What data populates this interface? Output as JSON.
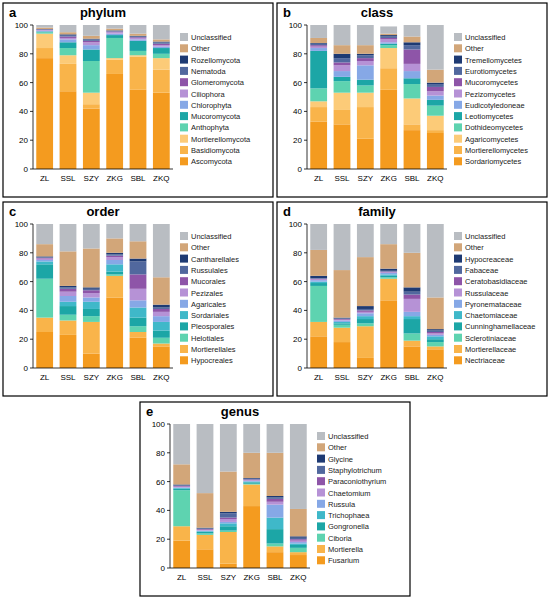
{
  "chart_data": [
    {
      "type": "bar",
      "title": "phylum",
      "annotations": [
        "a"
      ],
      "stacked": true,
      "legend": "right",
      "categories": [
        "ZL",
        "SSL",
        "SZY",
        "ZKG",
        "SBL",
        "ZKQ"
      ],
      "ylim": [
        0,
        100
      ],
      "yticks": [
        0,
        20,
        40,
        60,
        80,
        100
      ],
      "series": [
        {
          "name": "Ascomycota",
          "color": "#F49B1F",
          "values": [
            77,
            54,
            42,
            66,
            55,
            53
          ]
        },
        {
          "name": "Basidiomycota",
          "color": "#F9B44A",
          "values": [
            7,
            19,
            3,
            10,
            23,
            16
          ]
        },
        {
          "name": "Mortierellomycota",
          "color": "#FCCB78",
          "values": [
            10,
            6,
            8,
            1,
            1,
            8
          ]
        },
        {
          "name": "Anthophyta",
          "color": "#5ED3B0",
          "values": [
            1,
            5,
            22,
            14,
            3,
            3
          ]
        },
        {
          "name": "Mucoromycota",
          "color": "#1CA6A6",
          "values": [
            0.5,
            4,
            8,
            2,
            7,
            4
          ]
        },
        {
          "name": "Chlorophyta",
          "color": "#86A8E6",
          "values": [
            0.5,
            2,
            3,
            1,
            1,
            1
          ]
        },
        {
          "name": "Ciliophora",
          "color": "#B692D6",
          "values": [
            0.5,
            1,
            2,
            1,
            1,
            1
          ]
        },
        {
          "name": "Glomeromycota",
          "color": "#8E55A8",
          "values": [
            0.3,
            1,
            1,
            0.5,
            0.5,
            1
          ]
        },
        {
          "name": "Nematoda",
          "color": "#51689E",
          "values": [
            0.2,
            1,
            1,
            0.5,
            0.5,
            1
          ]
        },
        {
          "name": "Rozellomycota",
          "color": "#1E3A73",
          "values": [
            0.2,
            0.5,
            0.5,
            0.3,
            0.5,
            0.5
          ]
        },
        {
          "name": "Other",
          "color": "#D2A679",
          "values": [
            1,
            1.5,
            2,
            1.2,
            1.5,
            1.5
          ]
        },
        {
          "name": "Unclassified",
          "color": "#B9BDC2",
          "values": [
            1.8,
            5,
            7.5,
            2.5,
            6,
            10
          ]
        }
      ]
    },
    {
      "type": "bar",
      "title": "class",
      "annotations": [
        "b"
      ],
      "stacked": true,
      "legend": "right",
      "categories": [
        "ZL",
        "SSL",
        "SZY",
        "ZKG",
        "SBL",
        "ZKQ"
      ],
      "ylim": [
        0,
        100
      ],
      "yticks": [
        0,
        20,
        40,
        60,
        80,
        100
      ],
      "series": [
        {
          "name": "Sordariomycetes",
          "color": "#F49B1F",
          "values": [
            33,
            31,
            21,
            55,
            27,
            25
          ]
        },
        {
          "name": "Mortierellomycetes",
          "color": "#F9B44A",
          "values": [
            10,
            10,
            22,
            15,
            4,
            2
          ]
        },
        {
          "name": "Agaricomycetes",
          "color": "#FCCB78",
          "values": [
            4,
            12,
            10,
            14,
            18,
            10
          ]
        },
        {
          "name": "Dothideomycetes",
          "color": "#5ED3B0",
          "values": [
            9,
            8,
            5,
            2,
            10,
            7
          ]
        },
        {
          "name": "Leotiomycetes",
          "color": "#1CA6A6",
          "values": [
            26,
            3,
            4,
            1,
            4,
            4
          ]
        },
        {
          "name": "Eudicotyledoneae",
          "color": "#86A8E6",
          "values": [
            2,
            4,
            10,
            1,
            5,
            3
          ]
        },
        {
          "name": "Pezizomycetes",
          "color": "#B692D6",
          "values": [
            1,
            4,
            3,
            2,
            5,
            3
          ]
        },
        {
          "name": "Mucoromycetes",
          "color": "#8E55A8",
          "values": [
            1,
            2,
            2,
            1,
            10,
            3
          ]
        },
        {
          "name": "Eurotiomycetes",
          "color": "#51689E",
          "values": [
            1,
            3,
            2,
            1,
            3,
            2
          ]
        },
        {
          "name": "Tremellomycetes",
          "color": "#1E3A73",
          "values": [
            0.5,
            3,
            1,
            1,
            2,
            1
          ]
        },
        {
          "name": "Other",
          "color": "#D2A679",
          "values": [
            3.5,
            6,
            6,
            1,
            4,
            9
          ]
        },
        {
          "name": "Unclassified",
          "color": "#B9BDC2",
          "values": [
            9,
            14,
            14,
            5,
            8,
            31
          ]
        }
      ]
    },
    {
      "type": "bar",
      "title": "order",
      "annotations": [
        "c"
      ],
      "stacked": true,
      "legend": "right",
      "categories": [
        "ZL",
        "SSL",
        "SZY",
        "ZKG",
        "SBL",
        "ZKQ"
      ],
      "ylim": [
        0,
        100
      ],
      "yticks": [
        0,
        20,
        40,
        60,
        80,
        100
      ],
      "series": [
        {
          "name": "Hypocreales",
          "color": "#F49B1F",
          "values": [
            25,
            23,
            10,
            49,
            21,
            15
          ]
        },
        {
          "name": "Mortierellales",
          "color": "#F9B44A",
          "values": [
            10,
            10,
            22,
            15,
            4,
            2
          ]
        },
        {
          "name": "Helotiales",
          "color": "#5ED3B0",
          "values": [
            27,
            4,
            4,
            1,
            4,
            4
          ]
        },
        {
          "name": "Pleosporales",
          "color": "#1CA6A6",
          "values": [
            10,
            6,
            5,
            2,
            6,
            5
          ]
        },
        {
          "name": "Sordariales",
          "color": "#3FB8C9",
          "values": [
            2,
            3,
            5,
            5,
            7,
            6
          ]
        },
        {
          "name": "Agaricales",
          "color": "#86A8E6",
          "values": [
            1,
            4,
            3,
            3,
            5,
            4
          ]
        },
        {
          "name": "Pezizales",
          "color": "#B692D6",
          "values": [
            1,
            3,
            3,
            2,
            8,
            3
          ]
        },
        {
          "name": "Mucorales",
          "color": "#8E55A8",
          "values": [
            0.5,
            2,
            2,
            1,
            10,
            2
          ]
        },
        {
          "name": "Russulales",
          "color": "#51689E",
          "values": [
            0.5,
            1,
            1,
            1,
            9,
            1
          ]
        },
        {
          "name": "Cantharellales",
          "color": "#1E3A73",
          "values": [
            0.5,
            1,
            1,
            1,
            2,
            2
          ]
        },
        {
          "name": "Other",
          "color": "#D2A679",
          "values": [
            8.5,
            24,
            27,
            10,
            12,
            19
          ]
        },
        {
          "name": "Unclassified",
          "color": "#B9BDC2",
          "values": [
            14,
            19,
            17,
            10,
            12,
            37
          ]
        }
      ]
    },
    {
      "type": "bar",
      "title": "family",
      "annotations": [
        "d"
      ],
      "stacked": true,
      "legend": "right",
      "categories": [
        "ZL",
        "SSL",
        "SZY",
        "ZKG",
        "SBL",
        "ZKQ"
      ],
      "ylim": [
        0,
        100
      ],
      "yticks": [
        0,
        20,
        40,
        60,
        80,
        100
      ],
      "series": [
        {
          "name": "Nectriaceae",
          "color": "#F49B1F",
          "values": [
            22,
            18,
            7,
            47,
            15,
            13
          ]
        },
        {
          "name": "Mortierellaceae",
          "color": "#F9B44A",
          "values": [
            10,
            10,
            22,
            15,
            4,
            2
          ]
        },
        {
          "name": "Sclerotiniaceae",
          "color": "#5ED3B0",
          "values": [
            25,
            2,
            2,
            1,
            5,
            3
          ]
        },
        {
          "name": "Cunninghamellaceae",
          "color": "#1CA6A6",
          "values": [
            2,
            1,
            3,
            1,
            10,
            2
          ]
        },
        {
          "name": "Chaetomiaceae",
          "color": "#3FB8C9",
          "values": [
            1,
            1,
            2,
            1,
            2,
            2
          ]
        },
        {
          "name": "Pyronemataceae",
          "color": "#86A8E6",
          "values": [
            1,
            1,
            2,
            1,
            3,
            1
          ]
        },
        {
          "name": "Russulaceae",
          "color": "#B692D6",
          "values": [
            0.5,
            0.5,
            1,
            0.5,
            9,
            1
          ]
        },
        {
          "name": "Ceratobasidiaceae",
          "color": "#8E55A8",
          "values": [
            0.5,
            0.5,
            1,
            0.5,
            3,
            1
          ]
        },
        {
          "name": "Fabaceae",
          "color": "#51689E",
          "values": [
            0.5,
            0.5,
            1,
            0.5,
            2,
            1
          ]
        },
        {
          "name": "Hypocreaceae",
          "color": "#1E3A73",
          "values": [
            1.5,
            0.5,
            2,
            1.5,
            3,
            1
          ]
        },
        {
          "name": "Other",
          "color": "#D2A679",
          "values": [
            18,
            33,
            34,
            17,
            24,
            22
          ]
        },
        {
          "name": "Unclassified",
          "color": "#B9BDC2",
          "values": [
            18,
            32,
            23,
            14,
            20,
            51
          ]
        }
      ]
    },
    {
      "type": "bar",
      "title": "genus",
      "annotations": [
        "e"
      ],
      "stacked": true,
      "legend": "right",
      "categories": [
        "ZL",
        "SSL",
        "SZY",
        "ZKG",
        "SBL",
        "ZKQ"
      ],
      "ylim": [
        0,
        100
      ],
      "yticks": [
        0,
        20,
        40,
        60,
        80,
        100
      ],
      "series": [
        {
          "name": "Fusarium",
          "color": "#F49B1F",
          "values": [
            19,
            13,
            3,
            43,
            11,
            9
          ]
        },
        {
          "name": "Mortierella",
          "color": "#F9B44A",
          "values": [
            10,
            10,
            22,
            15,
            4,
            2
          ]
        },
        {
          "name": "Ciboria",
          "color": "#5ED3B0",
          "values": [
            25,
            1,
            1,
            0.5,
            2,
            3
          ]
        },
        {
          "name": "Gongronella",
          "color": "#1CA6A6",
          "values": [
            1,
            1,
            3,
            1,
            10,
            2
          ]
        },
        {
          "name": "Trichophaea",
          "color": "#3FB8C9",
          "values": [
            0.5,
            0.5,
            2,
            0.5,
            8,
            1
          ]
        },
        {
          "name": "Russula",
          "color": "#86A8E6",
          "values": [
            0.5,
            0.5,
            1,
            0.5,
            9,
            1
          ]
        },
        {
          "name": "Chaetomium",
          "color": "#B692D6",
          "values": [
            0.5,
            0.5,
            2,
            0.5,
            2,
            1
          ]
        },
        {
          "name": "Paraconiothyrium",
          "color": "#8E55A8",
          "values": [
            0.5,
            0.5,
            1,
            0.5,
            2,
            1
          ]
        },
        {
          "name": "Staphylotrichum",
          "color": "#51689E",
          "values": [
            0.5,
            0.5,
            3,
            0.5,
            1,
            1
          ]
        },
        {
          "name": "Glycine",
          "color": "#1E3A73",
          "values": [
            0.5,
            0.5,
            1,
            0.5,
            1,
            1
          ]
        },
        {
          "name": "Other",
          "color": "#D2A679",
          "values": [
            14,
            24,
            28,
            17.5,
            30,
            19
          ]
        },
        {
          "name": "Unclassified",
          "color": "#B9BDC2",
          "values": [
            28,
            48,
            33,
            20,
            20,
            59
          ]
        }
      ]
    }
  ]
}
